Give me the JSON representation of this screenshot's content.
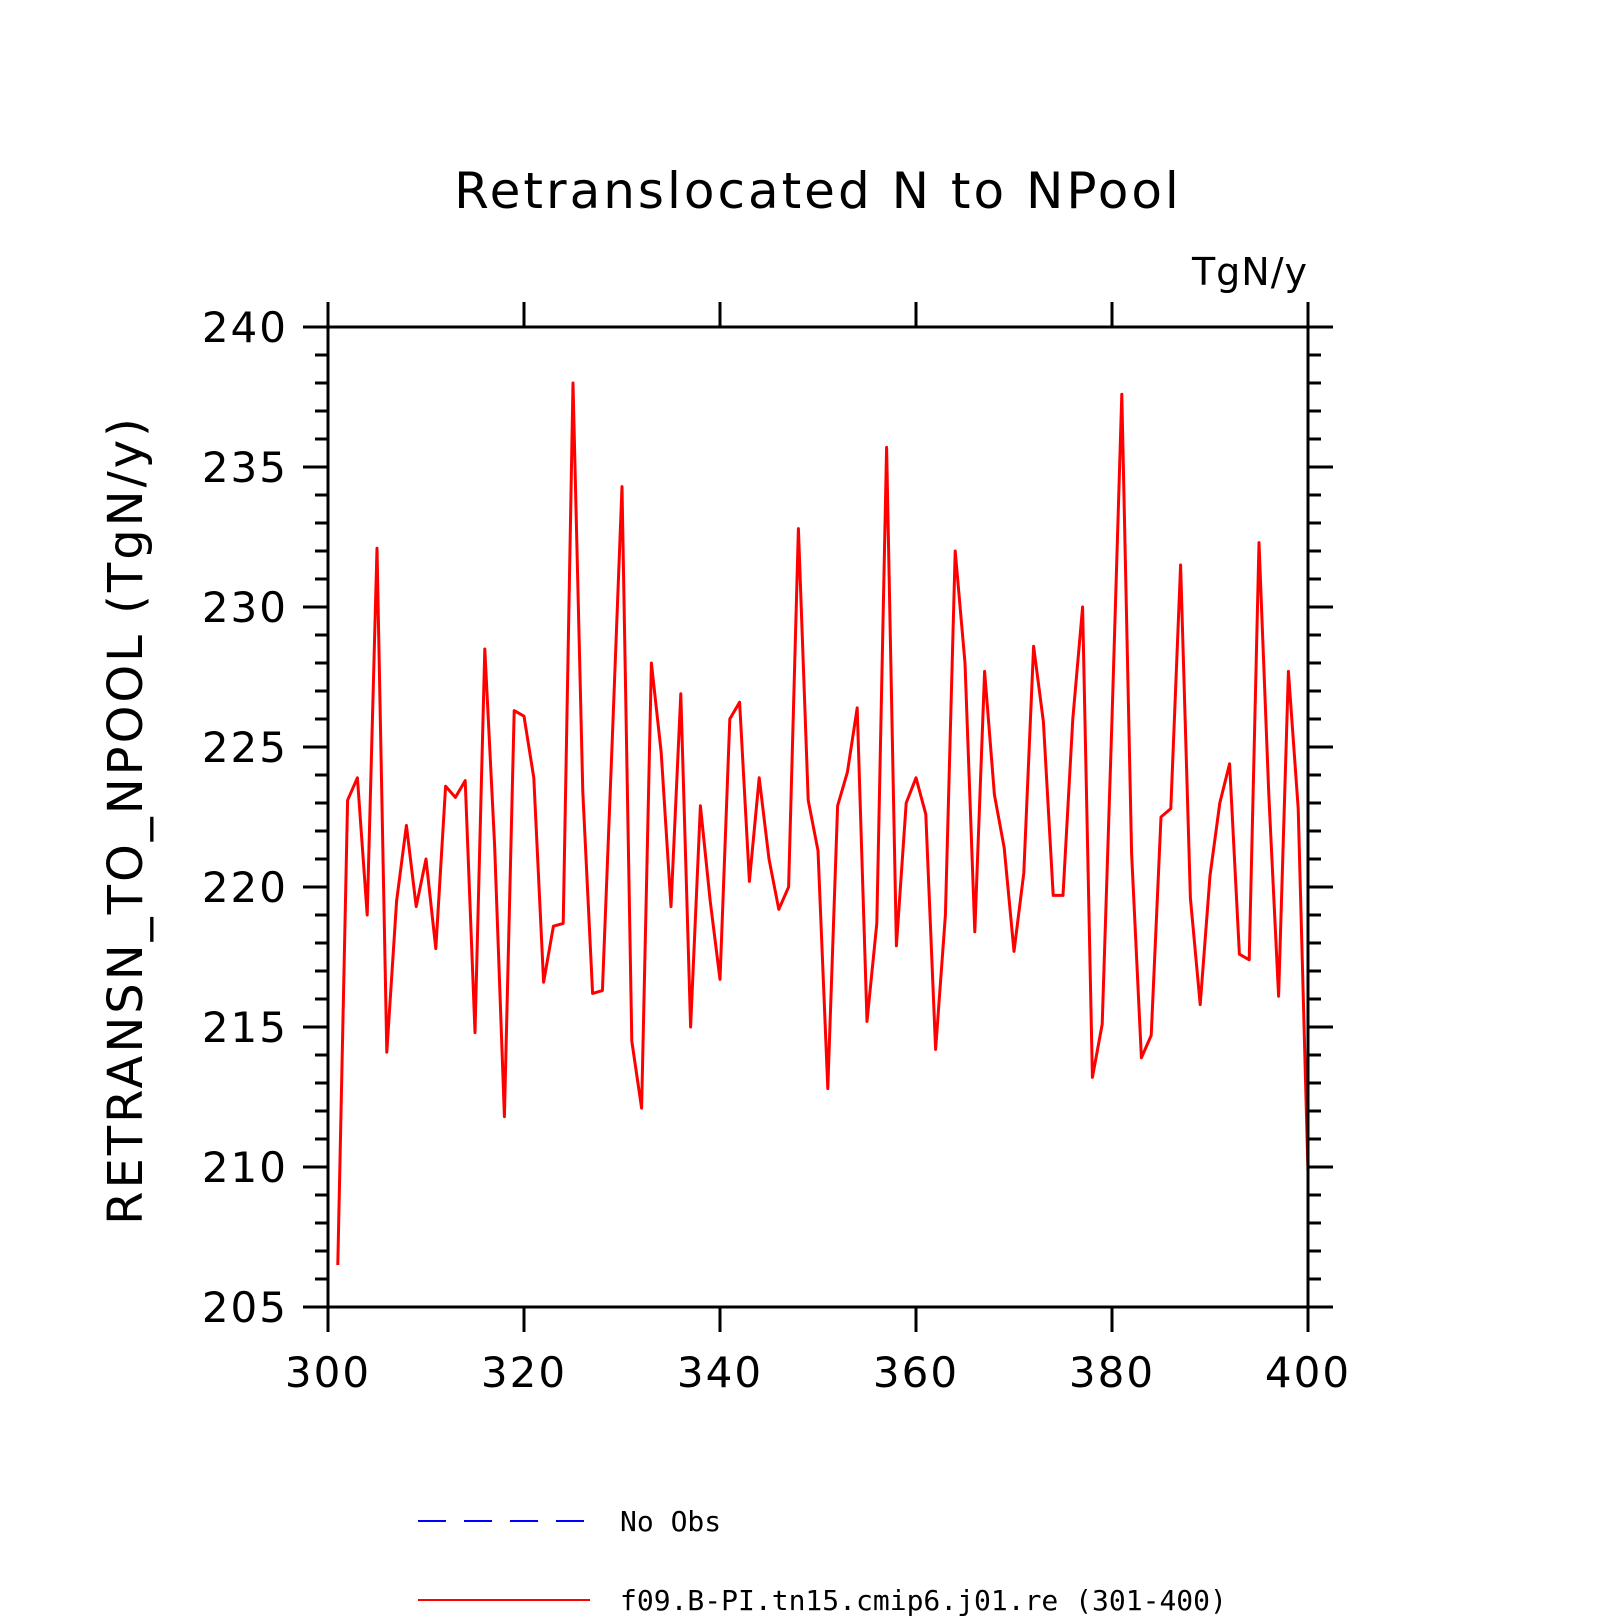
{
  "chart_data": {
    "type": "line",
    "title": "Retranslocated N to NPool",
    "units": "TgN/y",
    "ylabel": "RETRANSN_TO_NPOOL  (TgN/y)",
    "xlabel": "",
    "xlim": [
      300,
      400
    ],
    "ylim": [
      205,
      240
    ],
    "xticks": [
      300,
      320,
      340,
      360,
      380,
      400
    ],
    "yticks": [
      205,
      210,
      215,
      220,
      225,
      230,
      235,
      240
    ],
    "x_minor_step": 20,
    "y_minor_step": 1,
    "grid": false,
    "legend_position": "bottom",
    "legend": [
      {
        "label": "No Obs",
        "color": "#0000ff",
        "dash": true
      },
      {
        "label": "f09.B-PI.tn15.cmip6.j01.re (301-400)",
        "color": "#ff0000",
        "dash": false
      }
    ],
    "series": [
      {
        "name": "f09.B-PI.tn15.cmip6.j01.re (301-400)",
        "color": "#ff0000",
        "x_start": 301,
        "x_step": 1,
        "values": [
          206.5,
          223.1,
          223.9,
          219.0,
          232.1,
          214.1,
          219.5,
          222.2,
          219.3,
          221.0,
          217.8,
          223.6,
          223.2,
          223.8,
          214.8,
          228.5,
          221.5,
          211.8,
          226.3,
          226.1,
          223.9,
          216.6,
          218.6,
          218.7,
          238.0,
          223.4,
          216.2,
          216.3,
          225.2,
          234.3,
          214.5,
          212.1,
          228.0,
          224.8,
          219.3,
          226.9,
          215.0,
          222.9,
          219.5,
          216.7,
          226.0,
          226.6,
          220.2,
          223.9,
          221.0,
          219.2,
          220.0,
          232.8,
          223.1,
          221.3,
          212.8,
          222.9,
          224.1,
          226.4,
          215.2,
          218.7,
          235.7,
          217.9,
          223.0,
          223.9,
          222.6,
          214.2,
          219.0,
          232.0,
          228.0,
          218.4,
          227.7,
          223.3,
          221.4,
          217.7,
          220.5,
          228.6,
          225.9,
          219.7,
          219.7,
          226.0,
          230.0,
          213.2,
          215.1,
          226.0,
          237.6,
          221.2,
          213.9,
          214.7,
          222.5,
          222.8,
          231.5,
          219.6,
          215.8,
          220.4,
          223.0,
          224.4,
          217.6,
          217.4,
          232.3,
          223.3,
          216.1,
          227.7,
          222.8,
          209.8
        ]
      }
    ]
  }
}
